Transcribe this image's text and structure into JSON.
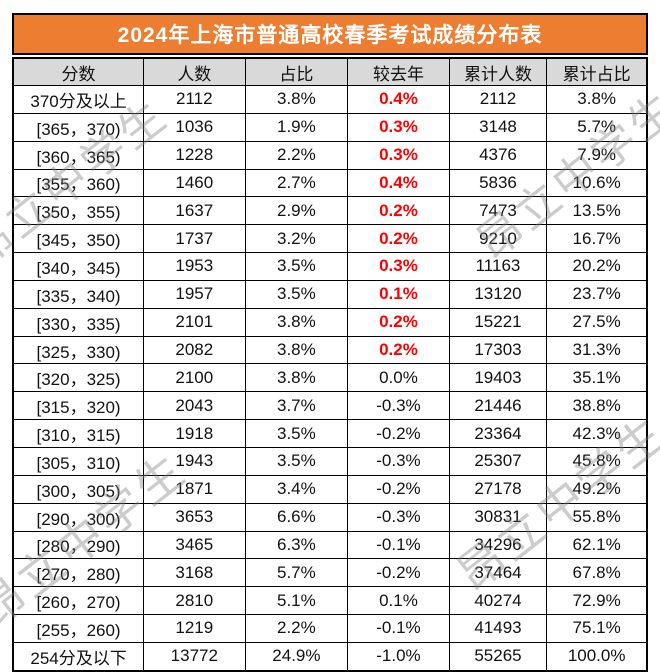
{
  "watermark": {
    "text": "昂立中学生"
  },
  "colors": {
    "accent_orange": "#ED7D31",
    "header_gray": "#D9D9D9",
    "delta_red": "#FF0000",
    "border_black": "#000000",
    "watermark_gray": "#8c8c8c"
  },
  "chart_data": {
    "type": "table",
    "title": "2024年上海市普通高校春季考试成绩分布表",
    "columns": [
      "分数",
      "人数",
      "占比",
      "较去年",
      "累计人数",
      "累计占比"
    ],
    "rows": [
      [
        "370分及以上",
        "2112",
        "3.8%",
        "0.4%",
        "2112",
        "3.8%"
      ],
      [
        "[365，370)",
        "1036",
        "1.9%",
        "0.3%",
        "3148",
        "5.7%"
      ],
      [
        "[360，365)",
        "1228",
        "2.2%",
        "0.3%",
        "4376",
        "7.9%"
      ],
      [
        "[355，360)",
        "1460",
        "2.7%",
        "0.4%",
        "5836",
        "10.6%"
      ],
      [
        "[350，355)",
        "1637",
        "2.9%",
        "0.2%",
        "7473",
        "13.5%"
      ],
      [
        "[345，350)",
        "1737",
        "3.2%",
        "0.2%",
        "9210",
        "16.7%"
      ],
      [
        "[340，345)",
        "1953",
        "3.5%",
        "0.3%",
        "11163",
        "20.2%"
      ],
      [
        "[335，340)",
        "1957",
        "3.5%",
        "0.1%",
        "13120",
        "23.7%"
      ],
      [
        "[330，335)",
        "2101",
        "3.8%",
        "0.2%",
        "15221",
        "27.5%"
      ],
      [
        "[325，330)",
        "2082",
        "3.8%",
        "0.2%",
        "17303",
        "31.3%"
      ],
      [
        "[320，325)",
        "2100",
        "3.8%",
        "0.0%",
        "19403",
        "35.1%"
      ],
      [
        "[315，320)",
        "2043",
        "3.7%",
        "-0.3%",
        "21446",
        "38.8%"
      ],
      [
        "[310，315)",
        "1918",
        "3.5%",
        "-0.2%",
        "23364",
        "42.3%"
      ],
      [
        "[305，310)",
        "1943",
        "3.5%",
        "-0.3%",
        "25307",
        "45.8%"
      ],
      [
        "[300，305)",
        "1871",
        "3.4%",
        "-0.2%",
        "27178",
        "49.2%"
      ],
      [
        "[290，300)",
        "3653",
        "6.6%",
        "-0.3%",
        "30831",
        "55.8%"
      ],
      [
        "[280，290)",
        "3465",
        "6.3%",
        "-0.1%",
        "34296",
        "62.1%"
      ],
      [
        "[270，280)",
        "3168",
        "5.7%",
        "-0.2%",
        "37464",
        "67.8%"
      ],
      [
        "[260，270)",
        "2810",
        "5.1%",
        "0.1%",
        "40274",
        "72.9%"
      ],
      [
        "[255，260)",
        "1219",
        "2.2%",
        "-0.1%",
        "41493",
        "75.1%"
      ],
      [
        "254分及以下",
        "13772",
        "24.9%",
        "-1.0%",
        "55265",
        "100.0%"
      ]
    ],
    "red_delta_row_indices": [
      0,
      1,
      2,
      3,
      4,
      5,
      6,
      7,
      8,
      9
    ],
    "total_count": "55265",
    "layout": {
      "column_width_percents": [
        20.6,
        16.0,
        16.2,
        16.0,
        15.4,
        15.8
      ]
    }
  }
}
